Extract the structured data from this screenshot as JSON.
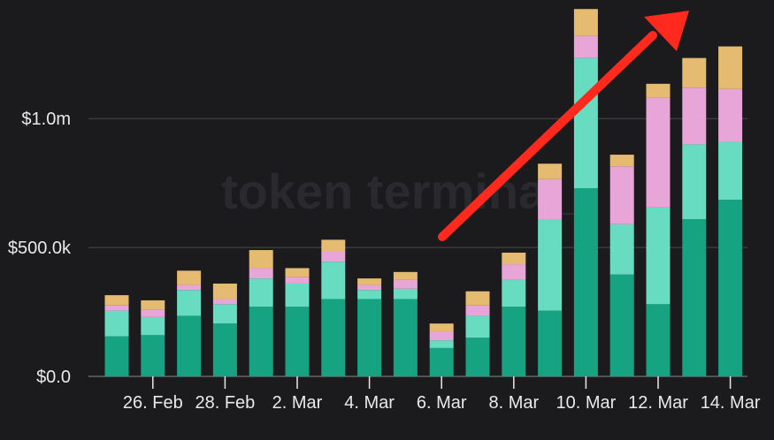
{
  "chart_data": {
    "type": "bar",
    "stacked": true,
    "categories": [
      "25 Feb",
      "26 Feb",
      "27 Feb",
      "28 Feb",
      "1 Mar",
      "2 Mar",
      "3 Mar",
      "4 Mar",
      "5 Mar",
      "6 Mar",
      "7 Mar",
      "8 Mar",
      "9 Mar",
      "10 Mar",
      "11 Mar",
      "12 Mar",
      "13 Mar",
      "14 Mar"
    ],
    "x_tick_labels": [
      "26. Feb",
      "28. Feb",
      "2. Mar",
      "4. Mar",
      "6. Mar",
      "8. Mar",
      "10. Mar",
      "12. Mar",
      "14. Mar"
    ],
    "y_tick_labels": [
      "$0.0",
      "$500.0k",
      "$1.0m"
    ],
    "ylim": [
      0,
      1460000
    ],
    "grid": true,
    "watermark": "token terminal_",
    "series": [
      {
        "color": "#16a382",
        "values": [
          155000,
          160000,
          235000,
          205000,
          270000,
          270000,
          300000,
          300000,
          300000,
          110000,
          150000,
          270000,
          255000,
          730000,
          395000,
          280000,
          610000,
          685000
        ]
      },
      {
        "color": "#67dcc0",
        "values": [
          100000,
          70000,
          100000,
          75000,
          110000,
          90000,
          145000,
          35000,
          40000,
          30000,
          85000,
          105000,
          355000,
          505000,
          195000,
          375000,
          290000,
          225000
        ]
      },
      {
        "color": "#e8a6d8",
        "values": [
          20000,
          30000,
          20000,
          20000,
          40000,
          25000,
          40000,
          20000,
          35000,
          35000,
          40000,
          60000,
          155000,
          85000,
          225000,
          425000,
          220000,
          205000
        ]
      },
      {
        "color": "#e4bb71",
        "values": [
          40000,
          35000,
          55000,
          60000,
          70000,
          35000,
          45000,
          25000,
          30000,
          30000,
          55000,
          45000,
          60000,
          105000,
          45000,
          55000,
          115000,
          165000
        ]
      }
    ],
    "annotation": {
      "type": "arrow",
      "color": "#ff2a1d"
    }
  }
}
